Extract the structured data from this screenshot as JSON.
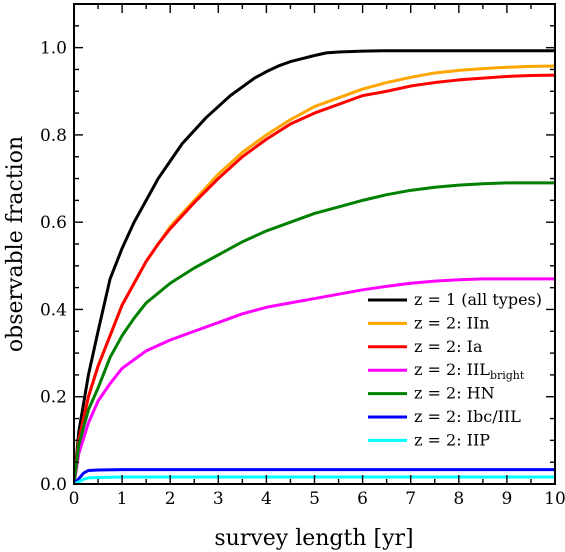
{
  "chart_data": {
    "type": "line",
    "title": "",
    "xlabel": "survey length [yr]",
    "ylabel": "observable fraction",
    "xlim": [
      0,
      10
    ],
    "ylim": [
      0,
      1.1
    ],
    "x_ticks": [
      0,
      1,
      2,
      3,
      4,
      5,
      6,
      7,
      8,
      9,
      10
    ],
    "y_ticks": [
      0.0,
      0.2,
      0.4,
      0.6,
      0.8,
      1.0
    ],
    "x_tick_labels": [
      "0",
      "1",
      "2",
      "3",
      "4",
      "5",
      "6",
      "7",
      "8",
      "9",
      "10"
    ],
    "y_tick_labels": [
      "0.0",
      "0.2",
      "0.4",
      "0.6",
      "0.8",
      "1.0"
    ],
    "grid": false,
    "legend_position": "lower-right",
    "series": [
      {
        "name": "z = 1 (all types)",
        "color": "#000000",
        "x": [
          0,
          0.1,
          0.3,
          0.5,
          0.75,
          1.0,
          1.25,
          1.5,
          1.75,
          2.0,
          2.25,
          2.5,
          2.75,
          3.0,
          3.25,
          3.5,
          3.75,
          4.0,
          4.25,
          4.5,
          4.75,
          5.0,
          5.25,
          5.5,
          6.0,
          6.5,
          7.0,
          8.0,
          9.0,
          10.0
        ],
        "y": [
          0.0,
          0.12,
          0.25,
          0.35,
          0.47,
          0.54,
          0.6,
          0.65,
          0.7,
          0.74,
          0.78,
          0.81,
          0.84,
          0.865,
          0.89,
          0.91,
          0.93,
          0.945,
          0.958,
          0.968,
          0.975,
          0.982,
          0.988,
          0.99,
          0.992,
          0.993,
          0.993,
          0.993,
          0.993,
          0.993
        ]
      },
      {
        "name": "z = 2: IIn",
        "color": "#FFA500",
        "x": [
          0,
          0.1,
          0.3,
          0.5,
          0.75,
          1.0,
          1.25,
          1.5,
          1.75,
          2.0,
          2.5,
          3.0,
          3.5,
          4.0,
          4.5,
          5.0,
          5.5,
          6.0,
          6.5,
          7.0,
          7.5,
          8.0,
          8.5,
          9.0,
          9.5,
          10.0
        ],
        "y": [
          0.0,
          0.1,
          0.2,
          0.27,
          0.34,
          0.41,
          0.46,
          0.51,
          0.55,
          0.59,
          0.65,
          0.71,
          0.76,
          0.8,
          0.835,
          0.865,
          0.885,
          0.905,
          0.92,
          0.932,
          0.942,
          0.948,
          0.952,
          0.955,
          0.957,
          0.958
        ]
      },
      {
        "name": "z = 2: Ia",
        "color": "#FF0000",
        "x": [
          0,
          0.1,
          0.3,
          0.5,
          0.75,
          1.0,
          1.25,
          1.5,
          1.75,
          2.0,
          2.5,
          3.0,
          3.5,
          4.0,
          4.5,
          5.0,
          5.5,
          6.0,
          6.5,
          7.0,
          7.5,
          8.0,
          8.5,
          9.0,
          9.5,
          10.0
        ],
        "y": [
          0.0,
          0.1,
          0.2,
          0.27,
          0.34,
          0.41,
          0.46,
          0.51,
          0.55,
          0.585,
          0.645,
          0.7,
          0.75,
          0.79,
          0.825,
          0.85,
          0.87,
          0.89,
          0.9,
          0.912,
          0.92,
          0.926,
          0.93,
          0.934,
          0.936,
          0.937
        ]
      },
      {
        "name": "z = 2: IIL",
        "name_subscript": "bright",
        "color": "#FF00FF",
        "x": [
          0,
          0.1,
          0.3,
          0.5,
          0.75,
          1.0,
          1.25,
          1.5,
          2.0,
          2.5,
          3.0,
          3.5,
          4.0,
          4.5,
          5.0,
          5.5,
          6.0,
          6.5,
          7.0,
          7.5,
          8.0,
          8.5,
          9.0,
          9.5,
          10.0
        ],
        "y": [
          0.0,
          0.07,
          0.14,
          0.19,
          0.23,
          0.265,
          0.285,
          0.305,
          0.33,
          0.35,
          0.37,
          0.39,
          0.405,
          0.415,
          0.425,
          0.435,
          0.445,
          0.453,
          0.46,
          0.465,
          0.468,
          0.47,
          0.47,
          0.47,
          0.47
        ]
      },
      {
        "name": "z = 2: HN",
        "color": "#008000",
        "x": [
          0,
          0.1,
          0.3,
          0.5,
          0.75,
          1.0,
          1.25,
          1.5,
          2.0,
          2.5,
          3.0,
          3.5,
          4.0,
          4.5,
          5.0,
          5.5,
          6.0,
          6.5,
          7.0,
          7.5,
          8.0,
          8.5,
          9.0,
          9.5,
          10.0
        ],
        "y": [
          0.0,
          0.09,
          0.17,
          0.22,
          0.29,
          0.34,
          0.38,
          0.415,
          0.46,
          0.495,
          0.525,
          0.555,
          0.58,
          0.6,
          0.62,
          0.635,
          0.65,
          0.663,
          0.673,
          0.68,
          0.685,
          0.688,
          0.69,
          0.69,
          0.69
        ]
      },
      {
        "name": "z = 2: Ibc/IIL",
        "color": "#0000FF",
        "x": [
          0,
          0.1,
          0.2,
          0.3,
          0.5,
          1.0,
          2.0,
          3.0,
          4.0,
          5.0,
          6.0,
          7.0,
          8.0,
          9.0,
          10.0
        ],
        "y": [
          0.0,
          0.012,
          0.025,
          0.031,
          0.032,
          0.033,
          0.033,
          0.033,
          0.033,
          0.033,
          0.033,
          0.033,
          0.033,
          0.033,
          0.033
        ]
      },
      {
        "name": "z = 2: IIP",
        "color": "#00FFFF",
        "x": [
          0,
          0.1,
          0.2,
          0.3,
          0.5,
          1.0,
          2.0,
          3.0,
          4.0,
          5.0,
          6.0,
          7.0,
          8.0,
          9.0,
          10.0
        ],
        "y": [
          0.0,
          0.005,
          0.011,
          0.014,
          0.015,
          0.016,
          0.016,
          0.016,
          0.016,
          0.016,
          0.016,
          0.016,
          0.016,
          0.016,
          0.016
        ]
      }
    ]
  }
}
